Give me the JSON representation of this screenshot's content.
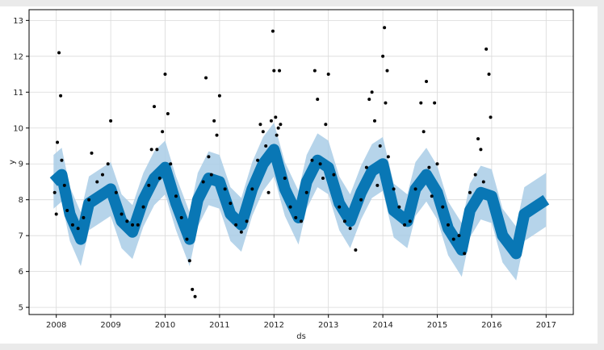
{
  "chart_data": {
    "type": "scatter",
    "title": "",
    "xlabel": "ds",
    "ylabel": "y",
    "xlim": [
      2007.5,
      2017.5
    ],
    "ylim": [
      4.8,
      13.3
    ],
    "x_ticks": [
      2008,
      2009,
      2010,
      2011,
      2012,
      2013,
      2014,
      2015,
      2016,
      2017
    ],
    "y_ticks": [
      5,
      6,
      7,
      8,
      9,
      10,
      11,
      12,
      13
    ],
    "grid": true,
    "legend": "none",
    "colors": {
      "observed": "#000000",
      "forecast": "#0072B2",
      "uncertainty": "#A9CCE6",
      "grid": "#d9d9d9"
    },
    "series": [
      {
        "role": "forecast",
        "x": [
          2007.95,
          2008.1,
          2008.25,
          2008.45,
          2008.6,
          2008.8,
          2009.0,
          2009.2,
          2009.4,
          2009.6,
          2009.8,
          2010.0,
          2010.2,
          2010.45,
          2010.6,
          2010.8,
          2011.0,
          2011.2,
          2011.4,
          2011.6,
          2011.8,
          2012.0,
          2012.2,
          2012.45,
          2012.6,
          2012.8,
          2013.0,
          2013.2,
          2013.4,
          2013.6,
          2013.8,
          2014.0,
          2014.2,
          2014.45,
          2014.6,
          2014.8,
          2015.0,
          2015.2,
          2015.45,
          2015.6,
          2015.8,
          2016.0,
          2016.2,
          2016.45,
          2016.6,
          2016.8,
          2017.0
        ],
        "y": [
          8.5,
          8.7,
          7.6,
          6.9,
          7.9,
          8.1,
          8.3,
          7.4,
          7.1,
          8.0,
          8.6,
          8.9,
          7.9,
          6.9,
          8.0,
          8.6,
          8.5,
          7.6,
          7.3,
          8.3,
          9.0,
          9.4,
          8.3,
          7.5,
          8.5,
          9.1,
          8.9,
          7.9,
          7.4,
          8.2,
          8.8,
          9.0,
          7.7,
          7.4,
          8.3,
          8.7,
          8.2,
          7.2,
          6.6,
          7.7,
          8.2,
          8.1,
          7.0,
          6.5,
          7.6,
          7.8,
          8.0
        ]
      },
      {
        "role": "observed",
        "x": [
          2007.97,
          2008.0,
          2008.02,
          2008.05,
          2008.08,
          2008.1,
          2008.15,
          2008.2,
          2008.3,
          2008.4,
          2008.5,
          2008.6,
          2008.65,
          2008.75,
          2008.85,
          2008.95,
          2009.0,
          2009.1,
          2009.2,
          2009.3,
          2009.4,
          2009.5,
          2009.6,
          2009.7,
          2009.75,
          2009.8,
          2009.85,
          2009.9,
          2009.95,
          2010.0,
          2010.05,
          2010.1,
          2010.2,
          2010.3,
          2010.4,
          2010.45,
          2010.5,
          2010.55,
          2010.7,
          2010.75,
          2010.8,
          2010.85,
          2010.9,
          2010.95,
          2011.0,
          2011.1,
          2011.2,
          2011.3,
          2011.4,
          2011.5,
          2011.6,
          2011.7,
          2011.75,
          2011.8,
          2011.85,
          2011.9,
          2011.95,
          2011.98,
          2012.0,
          2012.03,
          2012.05,
          2012.08,
          2012.1,
          2012.12,
          2012.2,
          2012.3,
          2012.4,
          2012.5,
          2012.6,
          2012.7,
          2012.75,
          2012.8,
          2012.85,
          2012.9,
          2012.95,
          2013.0,
          2013.1,
          2013.2,
          2013.3,
          2013.4,
          2013.5,
          2013.6,
          2013.7,
          2013.75,
          2013.8,
          2013.85,
          2013.9,
          2013.95,
          2014.0,
          2014.03,
          2014.05,
          2014.08,
          2014.1,
          2014.2,
          2014.3,
          2014.4,
          2014.5,
          2014.6,
          2014.7,
          2014.75,
          2014.8,
          2014.85,
          2014.9,
          2014.95,
          2015.0,
          2015.1,
          2015.2,
          2015.3,
          2015.4,
          2015.5,
          2015.6,
          2015.7,
          2015.75,
          2015.8,
          2015.85,
          2015.9,
          2015.95,
          2015.98
        ],
        "y": [
          8.2,
          7.6,
          9.6,
          12.1,
          10.9,
          9.1,
          8.4,
          7.7,
          7.3,
          7.2,
          7.5,
          8.0,
          9.3,
          8.5,
          8.7,
          9.0,
          10.2,
          8.2,
          7.6,
          7.4,
          7.3,
          7.3,
          7.8,
          8.4,
          9.4,
          10.6,
          9.4,
          8.6,
          9.9,
          11.5,
          10.4,
          9.0,
          8.1,
          7.5,
          6.9,
          6.3,
          5.5,
          5.3,
          8.5,
          11.4,
          9.2,
          8.7,
          10.2,
          9.8,
          10.9,
          8.3,
          7.9,
          7.3,
          7.1,
          7.4,
          8.3,
          9.1,
          10.1,
          9.9,
          9.5,
          8.2,
          10.2,
          12.7,
          11.6,
          10.3,
          9.8,
          10.0,
          11.6,
          10.1,
          8.6,
          7.8,
          7.5,
          7.4,
          8.2,
          9.1,
          11.6,
          10.8,
          9.0,
          8.6,
          10.1,
          11.5,
          8.7,
          7.8,
          7.4,
          7.2,
          6.6,
          8.0,
          8.9,
          10.8,
          11.0,
          10.2,
          8.4,
          9.5,
          12.0,
          12.8,
          10.7,
          11.6,
          9.2,
          8.3,
          7.8,
          7.3,
          7.4,
          8.3,
          10.7,
          9.9,
          11.3,
          8.9,
          8.1,
          10.7,
          9.0,
          7.8,
          7.3,
          6.9,
          7.0,
          6.5,
          8.2,
          8.7,
          9.7,
          9.4,
          8.5,
          12.2,
          11.5,
          10.3
        ]
      }
    ]
  }
}
